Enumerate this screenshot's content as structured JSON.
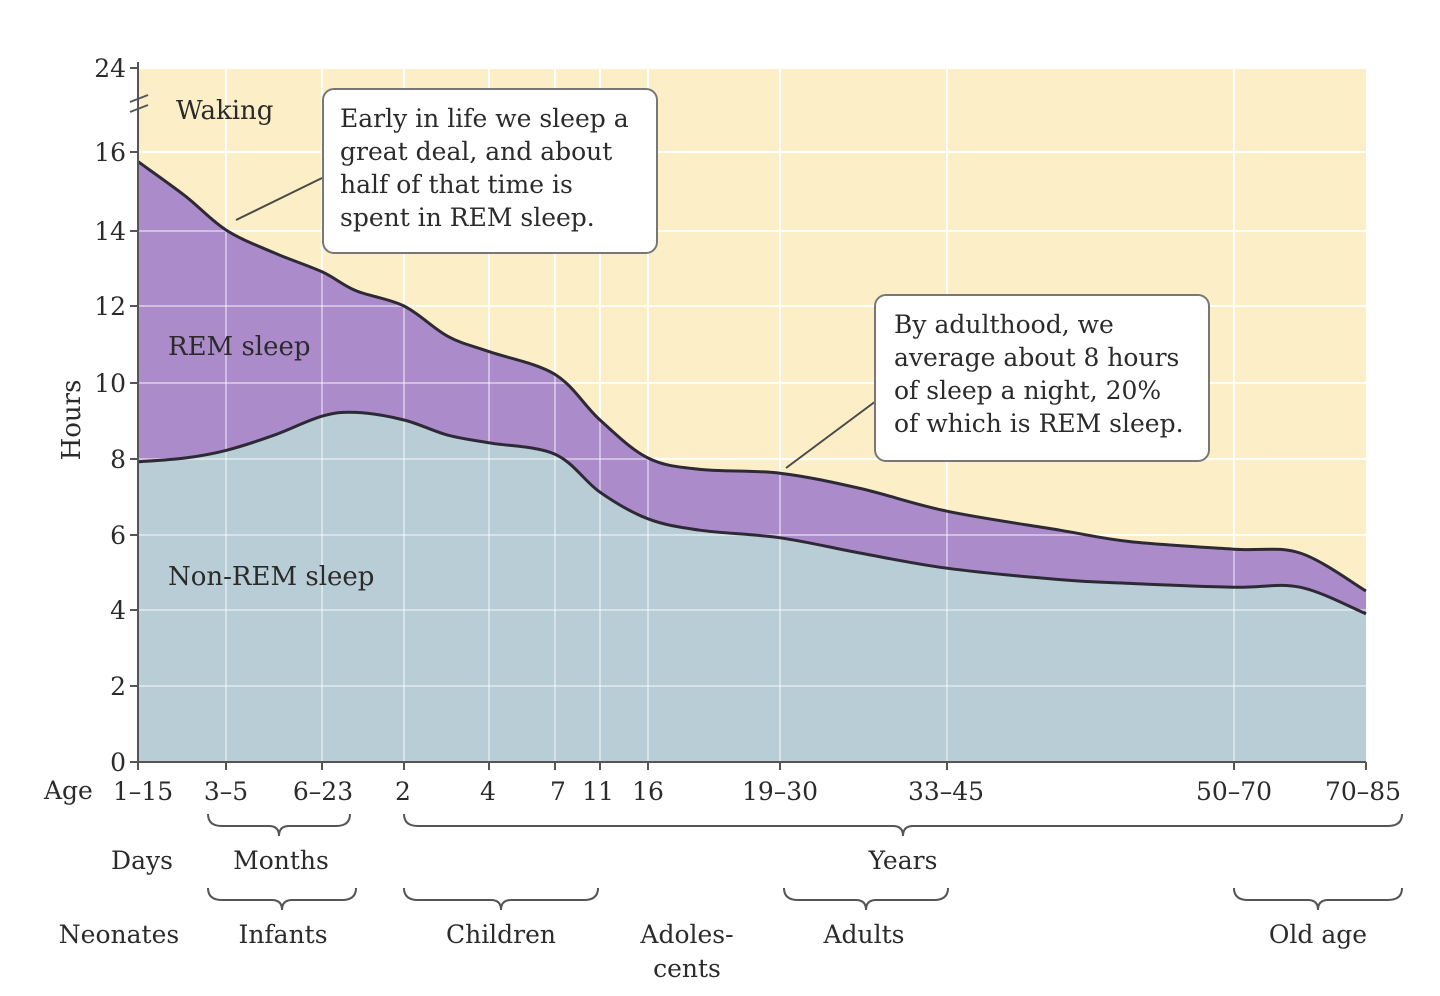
{
  "chart_data": {
    "type": "area",
    "title": "",
    "ylabel": "Hours",
    "xlabel": "Age",
    "ylim": [
      0,
      24
    ],
    "y_ticks": [
      "0",
      "2",
      "4",
      "6",
      "8",
      "10",
      "12",
      "14",
      "16",
      "24"
    ],
    "x_prefix": "Age",
    "x_tick_labels": [
      "1–15",
      "3–5",
      "6–23",
      "2",
      "4",
      "7",
      "11",
      "16",
      "19–30",
      "33–45",
      "50–70",
      "70–85"
    ],
    "series": [
      {
        "name": "Non-REM sleep",
        "color": "#b8cdd6",
        "values": [
          7.9,
          8.0,
          8.2,
          8.6,
          9.1,
          9.2,
          9.0,
          8.6,
          8.4,
          8.1,
          7.1,
          6.4,
          6.1,
          5.9,
          5.5,
          5.1,
          4.8,
          4.7,
          4.6,
          4.6,
          3.9
        ]
      },
      {
        "name": "REM sleep",
        "color": "#ac8bcb",
        "values": [
          7.9,
          6.9,
          5.8,
          4.8,
          3.8,
          3.2,
          3.0,
          2.6,
          2.4,
          2.1,
          1.9,
          1.6,
          1.6,
          1.7,
          1.7,
          1.5,
          1.3,
          1.1,
          1.0,
          0.9,
          0.6
        ]
      },
      {
        "name": "Waking",
        "color": "#fcefc7",
        "values": "remainder to 24"
      }
    ],
    "total_sleep": [
      15.8,
      14.9,
      14.0,
      13.4,
      12.9,
      12.4,
      12.0,
      11.2,
      10.8,
      10.2,
      9.0,
      8.0,
      7.7,
      7.6,
      7.2,
      6.6,
      6.1,
      5.8,
      5.6,
      5.5,
      4.5
    ],
    "region_labels": [
      "Waking",
      "REM sleep",
      "Non-REM sleep"
    ],
    "age_scales": [
      "Days",
      "Months",
      "Years"
    ],
    "age_groups": [
      "Neonates",
      "Infants",
      "Children",
      "Adoles-",
      "cents",
      "Adults",
      "Old age"
    ]
  },
  "callouts": {
    "early": {
      "lines": [
        "Early in life we sleep a",
        "great deal, and about",
        "half of that time is",
        "spent in REM sleep."
      ]
    },
    "adult": {
      "lines": [
        "By adulthood, we",
        "average about 8 hours",
        "of sleep a night, 20%",
        "of which is REM sleep."
      ]
    }
  },
  "colors": {
    "waking": "#fcefc7",
    "rem": "#ac8bcb",
    "nonrem": "#b8cdd6",
    "curve": "#2e2a35",
    "grid": "#ffffff",
    "axis": "#555555"
  }
}
